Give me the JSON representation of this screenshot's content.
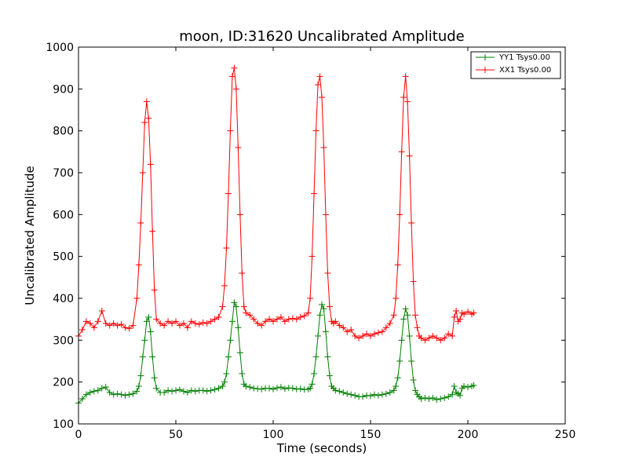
{
  "chart_data": {
    "type": "line",
    "title": "moon, ID:31620 Uncalibrated Amplitude",
    "xlabel": "Time (seconds)",
    "ylabel": "Uncalibrated Amplitude",
    "xlim": [
      0,
      250
    ],
    "ylim": [
      100,
      1000
    ],
    "xticks": [
      "0",
      "50",
      "100",
      "150",
      "200",
      "250"
    ],
    "yticks": [
      "100",
      "200",
      "300",
      "400",
      "500",
      "600",
      "700",
      "800",
      "900",
      "1000"
    ],
    "grid": false,
    "legend_position": "top-right",
    "marker": "+",
    "series": [
      {
        "name": "YY1 Tsys0.00",
        "color": "#008000",
        "x": [
          0,
          2,
          4,
          6,
          8,
          10,
          12,
          14,
          16,
          18,
          20,
          22,
          24,
          26,
          28,
          30,
          31,
          32,
          33,
          34,
          35,
          36,
          37,
          38,
          39,
          40,
          42,
          44,
          46,
          48,
          50,
          52,
          54,
          56,
          58,
          60,
          62,
          64,
          66,
          68,
          70,
          72,
          74,
          75,
          76,
          77,
          78,
          79,
          80,
          81,
          82,
          83,
          84,
          85,
          86,
          88,
          90,
          92,
          94,
          96,
          98,
          100,
          102,
          104,
          106,
          108,
          110,
          112,
          114,
          116,
          118,
          119,
          120,
          121,
          122,
          123,
          124,
          125,
          126,
          127,
          128,
          129,
          130,
          131,
          132,
          134,
          136,
          138,
          140,
          142,
          144,
          146,
          148,
          150,
          152,
          154,
          156,
          158,
          160,
          162,
          163,
          164,
          165,
          166,
          167,
          168,
          169,
          170,
          171,
          172,
          173,
          174,
          175,
          176,
          178,
          180,
          182,
          184,
          186,
          188,
          190,
          192,
          193,
          194,
          195,
          196,
          197,
          198,
          200,
          202,
          203
        ],
        "values": [
          150,
          160,
          170,
          175,
          178,
          180,
          185,
          188,
          175,
          170,
          172,
          170,
          168,
          170,
          172,
          178,
          190,
          215,
          260,
          300,
          345,
          355,
          320,
          260,
          210,
          185,
          175,
          175,
          180,
          178,
          180,
          182,
          178,
          175,
          180,
          178,
          180,
          180,
          178,
          180,
          182,
          185,
          190,
          200,
          220,
          260,
          300,
          345,
          390,
          380,
          330,
          270,
          220,
          195,
          190,
          188,
          185,
          184,
          183,
          185,
          185,
          183,
          186,
          188,
          184,
          186,
          185,
          183,
          184,
          182,
          183,
          185,
          195,
          220,
          260,
          310,
          360,
          385,
          375,
          320,
          260,
          215,
          190,
          185,
          180,
          178,
          175,
          172,
          170,
          168,
          165,
          165,
          168,
          167,
          170,
          168,
          170,
          172,
          175,
          180,
          190,
          210,
          250,
          300,
          350,
          375,
          360,
          310,
          250,
          205,
          180,
          170,
          165,
          160,
          162,
          160,
          162,
          158,
          160,
          162,
          165,
          170,
          190,
          175,
          172,
          168,
          185,
          190,
          188,
          190,
          192
        ]
      },
      {
        "name": "XX1 Tsys0.00",
        "color": "#ff0000",
        "x": [
          0,
          2,
          4,
          6,
          8,
          10,
          12,
          14,
          16,
          18,
          20,
          22,
          24,
          26,
          28,
          30,
          31,
          32,
          33,
          34,
          35,
          36,
          37,
          38,
          39,
          40,
          42,
          44,
          46,
          48,
          50,
          52,
          54,
          56,
          58,
          60,
          62,
          64,
          66,
          68,
          70,
          72,
          74,
          75,
          76,
          77,
          78,
          79,
          80,
          81,
          82,
          83,
          84,
          85,
          86,
          88,
          90,
          92,
          94,
          96,
          98,
          100,
          102,
          104,
          106,
          108,
          110,
          112,
          114,
          116,
          118,
          119,
          120,
          121,
          122,
          123,
          124,
          125,
          126,
          127,
          128,
          129,
          130,
          131,
          132,
          134,
          136,
          138,
          140,
          142,
          144,
          146,
          148,
          150,
          152,
          154,
          156,
          158,
          160,
          162,
          163,
          164,
          165,
          166,
          167,
          168,
          169,
          170,
          171,
          172,
          173,
          174,
          175,
          176,
          178,
          180,
          182,
          184,
          186,
          188,
          190,
          192,
          193,
          194,
          195,
          196,
          197,
          198,
          200,
          202,
          203
        ],
        "values": [
          310,
          325,
          345,
          340,
          330,
          345,
          370,
          340,
          335,
          340,
          335,
          338,
          330,
          328,
          335,
          400,
          480,
          580,
          700,
          820,
          870,
          830,
          720,
          560,
          420,
          350,
          340,
          335,
          345,
          340,
          345,
          335,
          340,
          330,
          345,
          340,
          338,
          342,
          340,
          345,
          350,
          355,
          380,
          430,
          520,
          650,
          800,
          930,
          950,
          900,
          760,
          600,
          460,
          380,
          365,
          360,
          350,
          340,
          335,
          345,
          350,
          345,
          350,
          355,
          345,
          350,
          352,
          350,
          355,
          358,
          365,
          400,
          500,
          650,
          800,
          910,
          930,
          880,
          760,
          600,
          460,
          380,
          345,
          340,
          345,
          335,
          330,
          320,
          325,
          310,
          305,
          310,
          315,
          310,
          315,
          318,
          320,
          330,
          340,
          360,
          400,
          480,
          600,
          750,
          880,
          930,
          870,
          740,
          580,
          440,
          360,
          330,
          310,
          305,
          300,
          305,
          310,
          305,
          300,
          305,
          315,
          310,
          355,
          370,
          345,
          350,
          365,
          362,
          368,
          362,
          365
        ]
      }
    ]
  }
}
